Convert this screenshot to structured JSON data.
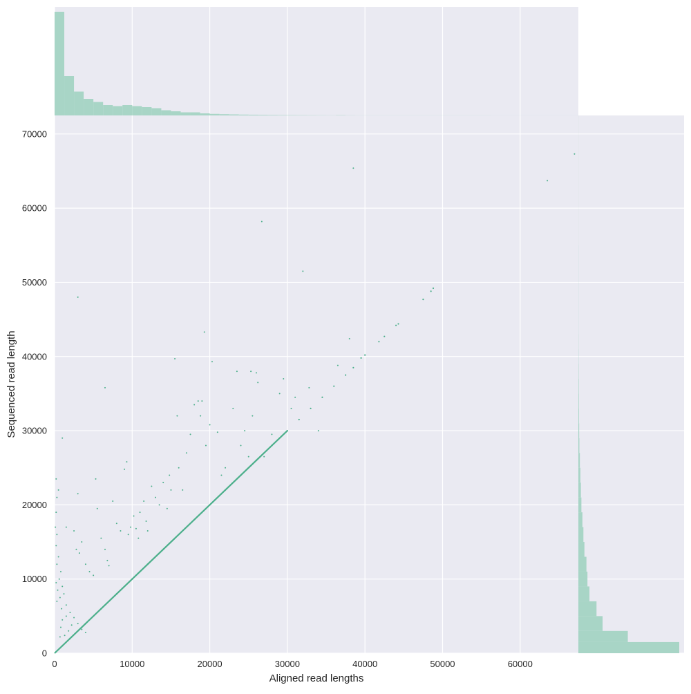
{
  "chart_data": {
    "type": "scatter",
    "title": "",
    "xlabel": "Aligned read lengths",
    "ylabel": "Sequenced read length",
    "xlim": [
      0,
      67500
    ],
    "ylim": [
      0,
      72500
    ],
    "x_ticks": [
      0,
      10000,
      20000,
      30000,
      40000,
      50000,
      60000
    ],
    "y_ticks": [
      0,
      10000,
      20000,
      30000,
      40000,
      50000,
      60000,
      70000
    ],
    "x_tick_labels": [
      "0",
      "10000",
      "20000",
      "30000",
      "40000",
      "50000",
      "60000"
    ],
    "y_tick_labels": [
      "0",
      "10000",
      "20000",
      "30000",
      "40000",
      "50000",
      "60000",
      "70000"
    ],
    "grid": true,
    "background_color": "#eaeaf2",
    "point_color": "#4caf8b",
    "hist_color": "#a8d5c6",
    "diagonal_points": [
      [
        200,
        200
      ],
      [
        1000,
        1000
      ],
      [
        2000,
        2000
      ],
      [
        4000,
        4000
      ],
      [
        6000,
        6000
      ],
      [
        8000,
        8000
      ],
      [
        10000,
        10000
      ],
      [
        12000,
        12000
      ],
      [
        14000,
        14000
      ],
      [
        16000,
        16000
      ],
      [
        18000,
        18000
      ],
      [
        20000,
        20000
      ],
      [
        22000,
        22000
      ],
      [
        24000,
        24000
      ],
      [
        26000,
        26000
      ],
      [
        28000,
        28000
      ],
      [
        30000,
        30000
      ],
      [
        31500,
        31500
      ],
      [
        33000,
        33000
      ],
      [
        34500,
        34500
      ],
      [
        36000,
        36000
      ],
      [
        37500,
        37500
      ],
      [
        38500,
        38500
      ],
      [
        39500,
        39800
      ],
      [
        40000,
        40200
      ],
      [
        41800,
        42000
      ],
      [
        42500,
        42700
      ],
      [
        44000,
        44200
      ],
      [
        44300,
        44400
      ],
      [
        47500,
        47700
      ],
      [
        48500,
        48800
      ],
      [
        48800,
        49200
      ]
    ],
    "scattered_points": [
      [
        200,
        23500
      ],
      [
        300,
        21000
      ],
      [
        200,
        19000
      ],
      [
        500,
        22000
      ],
      [
        100,
        17000
      ],
      [
        300,
        16000
      ],
      [
        200,
        14500
      ],
      [
        500,
        13000
      ],
      [
        300,
        12000
      ],
      [
        800,
        11000
      ],
      [
        600,
        10000
      ],
      [
        200,
        9500
      ],
      [
        1000,
        9000
      ],
      [
        400,
        8500
      ],
      [
        1200,
        8000
      ],
      [
        700,
        7500
      ],
      [
        300,
        7000
      ],
      [
        1500,
        6500
      ],
      [
        900,
        6000
      ],
      [
        2000,
        5500
      ],
      [
        1500,
        5000
      ],
      [
        2500,
        4800
      ],
      [
        1000,
        4500
      ],
      [
        3000,
        4000
      ],
      [
        2200,
        3800
      ],
      [
        800,
        3500
      ],
      [
        3500,
        3200
      ],
      [
        1800,
        3000
      ],
      [
        4000,
        2800
      ],
      [
        2600,
        2600
      ],
      [
        1300,
        2400
      ],
      [
        700,
        2200
      ],
      [
        1000,
        29000
      ],
      [
        3000,
        48000
      ],
      [
        6500,
        35800
      ],
      [
        1500,
        17000
      ],
      [
        2500,
        16500
      ],
      [
        2800,
        14000
      ],
      [
        3200,
        13500
      ],
      [
        3500,
        15000
      ],
      [
        3000,
        21500
      ],
      [
        4000,
        12000
      ],
      [
        4500,
        11000
      ],
      [
        5000,
        10500
      ],
      [
        5500,
        19500
      ],
      [
        5300,
        23500
      ],
      [
        6000,
        15500
      ],
      [
        6500,
        14000
      ],
      [
        6800,
        12500
      ],
      [
        7000,
        11800
      ],
      [
        7500,
        20500
      ],
      [
        8000,
        17500
      ],
      [
        8500,
        16500
      ],
      [
        9000,
        24800
      ],
      [
        9300,
        25800
      ],
      [
        9500,
        16000
      ],
      [
        9800,
        17000
      ],
      [
        10200,
        18500
      ],
      [
        10500,
        16800
      ],
      [
        10800,
        15500
      ],
      [
        11000,
        19000
      ],
      [
        11500,
        20500
      ],
      [
        11800,
        17800
      ],
      [
        12000,
        16500
      ],
      [
        12500,
        22500
      ],
      [
        13000,
        21000
      ],
      [
        13500,
        20000
      ],
      [
        14000,
        23000
      ],
      [
        14500,
        19500
      ],
      [
        14800,
        24000
      ],
      [
        15000,
        22000
      ],
      [
        15500,
        39700
      ],
      [
        15800,
        32000
      ],
      [
        16000,
        25000
      ],
      [
        16500,
        22000
      ],
      [
        17000,
        27000
      ],
      [
        17500,
        29500
      ],
      [
        18000,
        33500
      ],
      [
        18500,
        34000
      ],
      [
        18800,
        32000
      ],
      [
        19000,
        34000
      ],
      [
        19300,
        43300
      ],
      [
        19500,
        28000
      ],
      [
        20000,
        30800
      ],
      [
        20300,
        39300
      ],
      [
        21000,
        29800
      ],
      [
        21500,
        24000
      ],
      [
        22000,
        25000
      ],
      [
        23000,
        33000
      ],
      [
        23500,
        38000
      ],
      [
        24000,
        28000
      ],
      [
        24500,
        30000
      ],
      [
        25000,
        26500
      ],
      [
        25300,
        38000
      ],
      [
        25500,
        32000
      ],
      [
        26000,
        37800
      ],
      [
        26200,
        36500
      ],
      [
        26700,
        58200
      ],
      [
        27000,
        26500
      ],
      [
        28000,
        29500
      ],
      [
        29000,
        35000
      ],
      [
        29500,
        37000
      ],
      [
        30500,
        33000
      ],
      [
        31000,
        34500
      ],
      [
        32000,
        51500
      ],
      [
        32800,
        35800
      ],
      [
        34000,
        30000
      ],
      [
        36500,
        38800
      ],
      [
        38000,
        42400
      ],
      [
        38500,
        65400
      ],
      [
        63500,
        63700
      ],
      [
        67000,
        67300
      ]
    ],
    "top_histogram": {
      "bin_edges": [
        0,
        1250,
        2500,
        3750,
        5000,
        6250,
        7500,
        8750,
        10000,
        11250,
        12500,
        13750,
        15000,
        16250,
        17500,
        18750,
        20000,
        21250,
        22500,
        23750,
        25000,
        26250,
        27500,
        28750,
        30000,
        31250,
        32500,
        33750,
        35000,
        36250,
        37500,
        38750,
        40000,
        41250,
        42500,
        43750,
        45000,
        46250,
        47500,
        48750,
        50000,
        51250,
        52500,
        53750,
        55000,
        56250,
        57500,
        58750,
        60000,
        61250,
        62500,
        63750,
        65000,
        66250,
        67500
      ],
      "counts": [
        100,
        38,
        23,
        16,
        13,
        10,
        9,
        10,
        9,
        8,
        7,
        5,
        4,
        3,
        3,
        2,
        1.5,
        1.2,
        1,
        0.8,
        0.7,
        0.6,
        0.5,
        0.4,
        0.35,
        0.3,
        0.25,
        0.2,
        0.15,
        0.3,
        0.15,
        0.1,
        0.1,
        0.1,
        0.1,
        0.1,
        0.1,
        0.1,
        0.1,
        0.1,
        0.1,
        0.1,
        0.1,
        0.1,
        0.1,
        0.05,
        0.05,
        0.05,
        0.05,
        0.05,
        0.05,
        0.05,
        0.05,
        0.05
      ]
    },
    "right_histogram": {
      "bin_edges": [
        0,
        1500,
        3000,
        5000,
        7000,
        9000,
        11000,
        13000,
        15000,
        17000,
        19000,
        21000,
        23000,
        25000,
        27000,
        29000,
        31000,
        33000,
        35000,
        37000,
        39000,
        41000,
        43000,
        45000,
        48000,
        50000,
        55000,
        60000,
        65000,
        70000,
        72500
      ],
      "counts": [
        100,
        49,
        24,
        18,
        11,
        9,
        8,
        6,
        5,
        4,
        3,
        2.5,
        2,
        1.5,
        1,
        0.8,
        0.6,
        0.5,
        0.4,
        0.3,
        0.2,
        0.15,
        0.1,
        0.1,
        0.1,
        0.1,
        0.05,
        0.05,
        0.05,
        0.05
      ]
    }
  }
}
